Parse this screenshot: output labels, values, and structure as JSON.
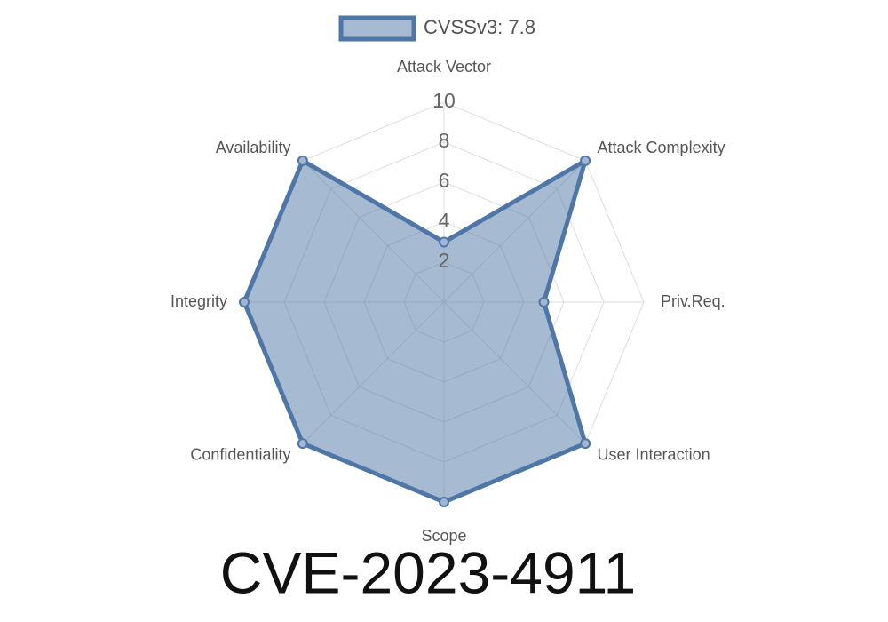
{
  "chart_data": {
    "type": "radar",
    "title": "CVE-2023-4911",
    "categories": [
      "Attack Vector",
      "Attack Complexity",
      "Priv.Req.",
      "User Interaction",
      "Scope",
      "Confidentiality",
      "Integrity",
      "Availability"
    ],
    "series": [
      {
        "name": "CVSSv3: 7.8",
        "color": "#4e76a6",
        "values": [
          3,
          10,
          5,
          10,
          10,
          10,
          10,
          10
        ]
      }
    ],
    "rlim": [
      0,
      10
    ],
    "rticks": [
      2,
      4,
      6,
      8,
      10
    ],
    "grid": true,
    "legend": "top"
  }
}
